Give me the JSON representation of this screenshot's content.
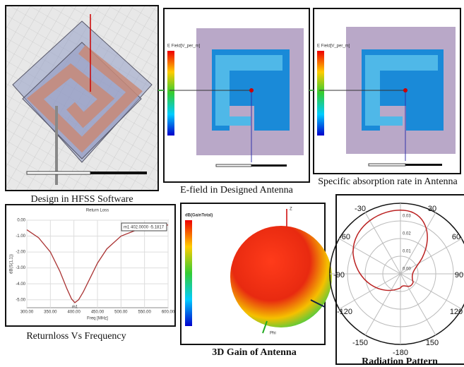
{
  "panels": {
    "hfss": {
      "caption": "Design in HFSS Software"
    },
    "efield": {
      "caption": "E-field in Designed Antenna",
      "legend_title": "E Field[V_per_m]"
    },
    "sar": {
      "caption": "Specific absorption rate in Antenna",
      "legend_title": "E Field[V_per_m]"
    },
    "return_loss": {
      "caption": "Returnloss Vs Frequency",
      "title": "Return Loss",
      "x_label": "Freq [MHz]",
      "y_label": "dB(S(1,1))",
      "marker_label": "m1",
      "marker_text": "m1 402.0000 -5.1817",
      "x": [
        300,
        325,
        350,
        370,
        385,
        395,
        402,
        410,
        420,
        435,
        450,
        470,
        500,
        530,
        560,
        600
      ],
      "values": [
        -0.6,
        -1.1,
        -2.0,
        -3.2,
        -4.3,
        -4.95,
        -5.1817,
        -5.0,
        -4.5,
        -3.6,
        -2.7,
        -1.8,
        -1.0,
        -0.65,
        -0.45,
        -0.3
      ],
      "xlim": [
        300,
        600
      ],
      "ylim": [
        -5.5,
        0
      ],
      "xticks": [
        {
          "value": 300,
          "label": "300.00"
        },
        {
          "value": 350,
          "label": "350.00"
        },
        {
          "value": 400,
          "label": "400.00"
        },
        {
          "value": 450,
          "label": "450.00"
        },
        {
          "value": 500,
          "label": "500.00"
        },
        {
          "value": 550,
          "label": "550.00"
        },
        {
          "value": 600,
          "label": "600.00"
        }
      ],
      "yticks": [
        {
          "value": 0,
          "label": "0.00"
        },
        {
          "value": -1,
          "label": "-1.00"
        },
        {
          "value": -2,
          "label": "-2.00"
        },
        {
          "value": -3,
          "label": "-3.00"
        },
        {
          "value": -4,
          "label": "-4.00"
        },
        {
          "value": -5,
          "label": "-5.00"
        }
      ]
    },
    "gain": {
      "caption": "3D Gain of Antenna",
      "legend_title": "dB(GainTotal)",
      "axis_z": "Z",
      "axis_phi": "Phi"
    },
    "radiation": {
      "caption": "Radiation Pattern",
      "angle_labels": [
        "-30",
        "30",
        "-60",
        "60",
        "-90",
        "90",
        "-120",
        "120",
        "-150",
        "150",
        "-180"
      ],
      "radial_labels": [
        "0.03",
        "0.02",
        "0.01",
        "0.00"
      ]
    }
  }
}
